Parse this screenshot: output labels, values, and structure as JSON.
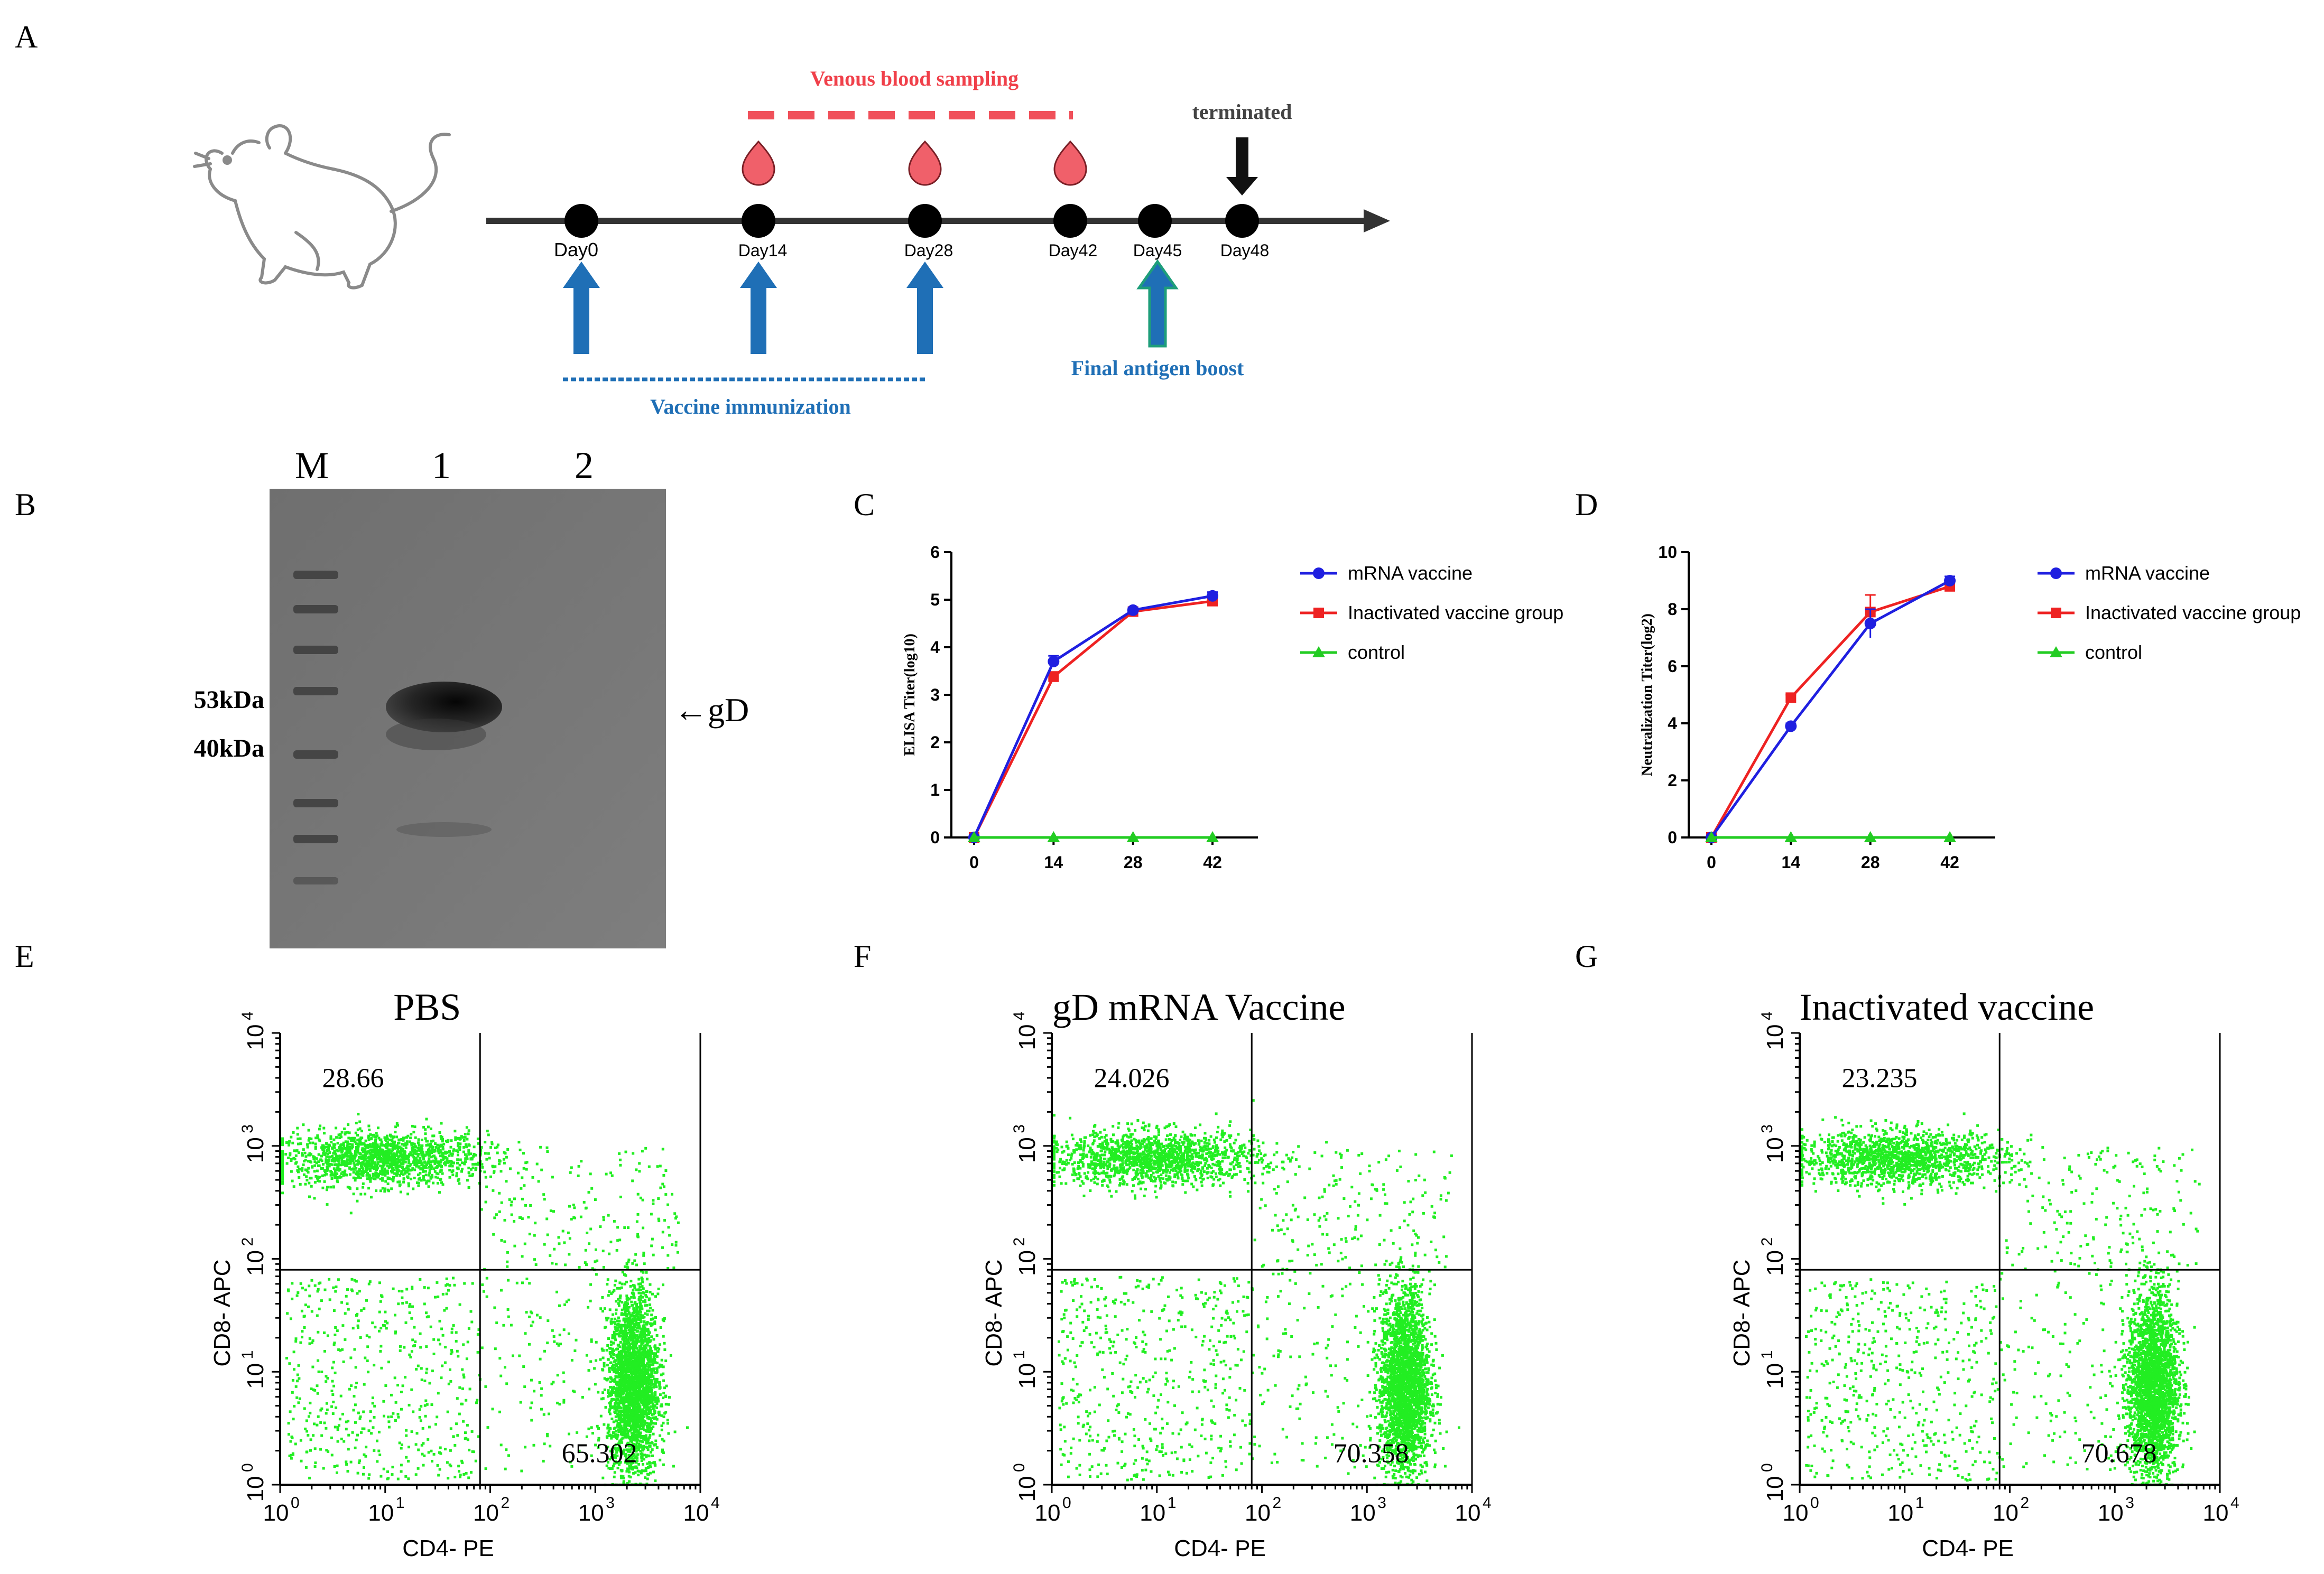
{
  "panel_letters": [
    "A",
    "B",
    "C",
    "D",
    "E",
    "F",
    "G"
  ],
  "timeline": {
    "sampling_label": "Venous blood sampling",
    "terminated_label": "terminated",
    "days": [
      "Day0",
      "Day14",
      "Day28",
      "Day42",
      "Day45",
      "Day48"
    ],
    "immunization_label": "Vaccine immunization",
    "boost_label": "Final antigen boost",
    "colors": {
      "sampling": "#f0505a",
      "drop": "#f0606a",
      "arrow": "#1f6fb6",
      "boost": "#1e9e7a",
      "axis": "#333333"
    }
  },
  "western_blot": {
    "lanes": [
      "M",
      "1",
      "2"
    ],
    "markers": [
      "53kDa",
      "40kDa"
    ],
    "band_label": "←gD"
  },
  "chart_data": [
    {
      "panel": "C",
      "type": "line",
      "ylabel": "ELISA Titer(log10)",
      "x": [
        0,
        14,
        28,
        42
      ],
      "ylim": [
        0,
        6
      ],
      "yticks": [
        0,
        1,
        2,
        3,
        4,
        5,
        6
      ],
      "series": [
        {
          "name": "mRNA vaccine",
          "color": "#1f1fe0",
          "marker": "circle",
          "values": [
            0.0,
            3.7,
            4.78,
            5.08
          ],
          "err": [
            0,
            0.12,
            0.05,
            0.08
          ]
        },
        {
          "name": "Inactivated vaccine group",
          "color": "#ee2222",
          "marker": "square",
          "values": [
            0.0,
            3.38,
            4.75,
            4.97
          ],
          "err": [
            0,
            0.1,
            0.05,
            0.08
          ]
        },
        {
          "name": "control",
          "color": "#22cc22",
          "marker": "triangle",
          "values": [
            0,
            0,
            0,
            0
          ],
          "err": [
            0,
            0,
            0,
            0
          ]
        }
      ]
    },
    {
      "panel": "D",
      "type": "line",
      "ylabel": "Neutralization Titer(log2)",
      "x": [
        0,
        14,
        28,
        42
      ],
      "ylim": [
        0,
        10
      ],
      "yticks": [
        0,
        2,
        4,
        6,
        8,
        10
      ],
      "series": [
        {
          "name": "mRNA vaccine",
          "color": "#1f1fe0",
          "marker": "circle",
          "values": [
            0.0,
            3.9,
            7.5,
            9.0
          ],
          "err": [
            0,
            0.1,
            0.5,
            0.15
          ]
        },
        {
          "name": "Inactivated vaccine group",
          "color": "#ee2222",
          "marker": "square",
          "values": [
            0.0,
            4.9,
            7.9,
            8.8
          ],
          "err": [
            0,
            0.1,
            0.6,
            0.1
          ]
        },
        {
          "name": "control",
          "color": "#22cc22",
          "marker": "triangle",
          "values": [
            0,
            0,
            0,
            0
          ],
          "err": [
            0,
            0,
            0,
            0
          ]
        }
      ]
    },
    {
      "panel": "E",
      "type": "scatter",
      "title": "PBS",
      "xlabel": "CD4- PE",
      "ylabel": "CD8- APC",
      "scale": "log",
      "xlim": [
        1,
        10000
      ],
      "ylim": [
        1,
        10000
      ],
      "gate": [
        80,
        80
      ],
      "quadrant_values": {
        "upper_left": "28.66",
        "lower_right": "65.302"
      }
    },
    {
      "panel": "F",
      "type": "scatter",
      "title": "gD mRNA Vaccine",
      "xlabel": "CD4- PE",
      "ylabel": "CD8- APC",
      "scale": "log",
      "xlim": [
        1,
        10000
      ],
      "ylim": [
        1,
        10000
      ],
      "gate": [
        80,
        80
      ],
      "quadrant_values": {
        "upper_left": "24.026",
        "lower_right": "70.358"
      }
    },
    {
      "panel": "G",
      "type": "scatter",
      "title": "Inactivated vaccine",
      "xlabel": "CD4- PE",
      "ylabel": "CD8- APC",
      "scale": "log",
      "xlim": [
        1,
        10000
      ],
      "ylim": [
        1,
        10000
      ],
      "gate": [
        80,
        80
      ],
      "quadrant_values": {
        "upper_left": "23.235",
        "lower_right": "70.678"
      }
    }
  ]
}
